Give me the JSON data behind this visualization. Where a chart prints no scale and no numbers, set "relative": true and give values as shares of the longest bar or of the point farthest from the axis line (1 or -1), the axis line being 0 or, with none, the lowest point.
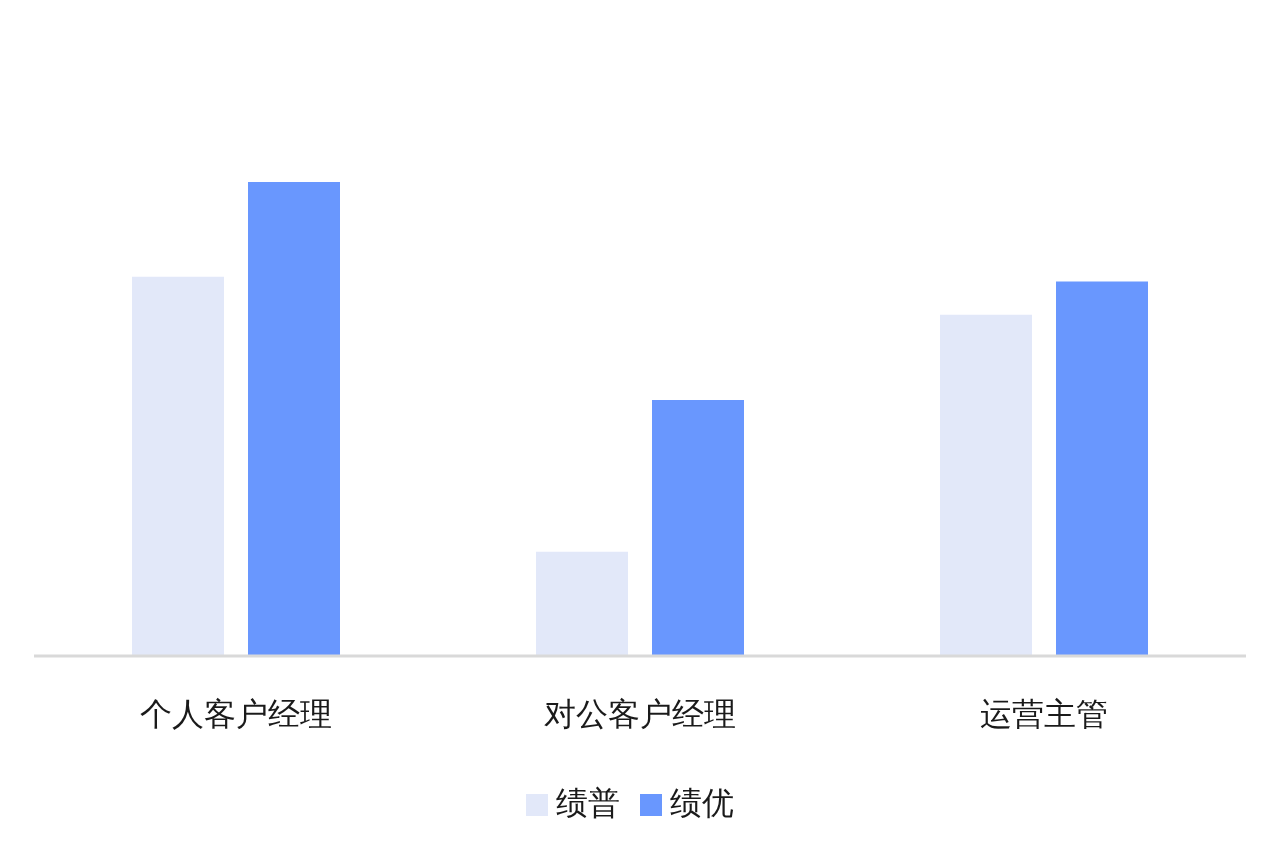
{
  "chart_data": {
    "type": "bar",
    "relative": true,
    "categories": [
      "个人客户经理",
      "对公客户经理",
      "运营主管"
    ],
    "series": [
      {
        "name": "绩普",
        "color": "#e2e8f9",
        "values": [
          0.8,
          0.22,
          0.72
        ]
      },
      {
        "name": "绩优",
        "color": "#6997fe",
        "values": [
          1,
          0.54,
          0.79
        ]
      }
    ],
    "legend": "bottom"
  }
}
